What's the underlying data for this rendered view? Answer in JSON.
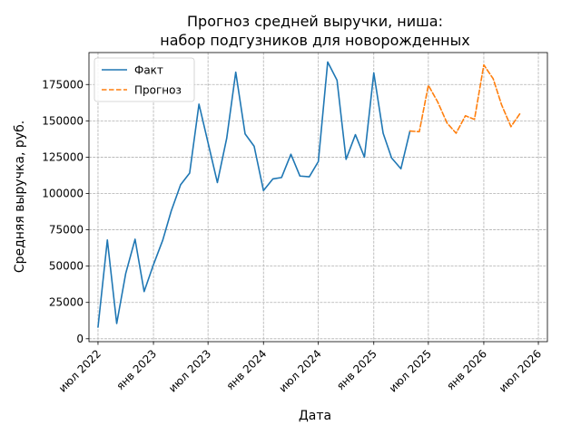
{
  "chart_data": {
    "type": "line",
    "title": "Прогноз средней выручки, ниша:\nнабор подгузников для новорожденных",
    "title_lines": [
      "Прогноз средней выручки, ниша:",
      "набор подгузников для новорожденных"
    ],
    "xlabel": "Дата",
    "ylabel": "Средняя выручка, руб.",
    "grid": true,
    "legend_position": "top-left",
    "ylim": [
      -2000,
      197000
    ],
    "xlim": [
      "2022-06-01",
      "2026-07-31"
    ],
    "yticks": [
      0,
      25000,
      50000,
      75000,
      100000,
      125000,
      150000,
      175000
    ],
    "ytick_labels": [
      "0",
      "25000",
      "50000",
      "75000",
      "100000",
      "125000",
      "150000",
      "175000"
    ],
    "xticks": [
      "2022-07-01",
      "2023-01-01",
      "2023-07-01",
      "2024-01-01",
      "2024-07-01",
      "2025-01-01",
      "2025-07-01",
      "2026-01-01",
      "2026-07-01"
    ],
    "xtick_labels": [
      "июл 2022",
      "янв 2023",
      "июл 2023",
      "янв 2024",
      "июл 2024",
      "янв 2025",
      "июл 2025",
      "янв 2026",
      "июл 2026"
    ],
    "series": [
      {
        "name": "Факт",
        "color": "#1f77b4",
        "style": "solid",
        "x": [
          "2022-07-01",
          "2022-08-01",
          "2022-09-01",
          "2022-10-01",
          "2022-11-01",
          "2022-12-01",
          "2023-01-01",
          "2023-02-01",
          "2023-03-01",
          "2023-04-01",
          "2023-05-01",
          "2023-06-01",
          "2023-07-01",
          "2023-08-01",
          "2023-09-01",
          "2023-10-01",
          "2023-11-01",
          "2023-12-01",
          "2024-01-01",
          "2024-02-01",
          "2024-03-01",
          "2024-04-01",
          "2024-05-01",
          "2024-06-01",
          "2024-07-01",
          "2024-08-01",
          "2024-09-01",
          "2024-10-01",
          "2024-11-01",
          "2024-12-01",
          "2025-01-01",
          "2025-02-01",
          "2025-03-01",
          "2025-04-01",
          "2025-05-01"
        ],
        "values": [
          8000,
          68000,
          10500,
          45000,
          68500,
          32500,
          51000,
          68000,
          88000,
          106000,
          114000,
          161500,
          135000,
          107500,
          138000,
          183500,
          141000,
          132500,
          102000,
          110000,
          111000,
          127000,
          112000,
          111500,
          122000,
          190500,
          178000,
          123500,
          140500,
          125000,
          183000,
          141500,
          124500,
          117000,
          143000
        ]
      },
      {
        "name": "Прогноз",
        "color": "#ff7f0e",
        "style": "dashed",
        "x": [
          "2025-05-01",
          "2025-06-01",
          "2025-07-01",
          "2025-08-01",
          "2025-09-01",
          "2025-10-01",
          "2025-11-01",
          "2025-12-01",
          "2026-01-01",
          "2026-02-01",
          "2026-03-01",
          "2026-04-01",
          "2026-05-01"
        ],
        "values": [
          143000,
          142500,
          174500,
          163000,
          148500,
          141500,
          153500,
          151000,
          188500,
          179000,
          161000,
          146000,
          155000
        ]
      }
    ]
  }
}
